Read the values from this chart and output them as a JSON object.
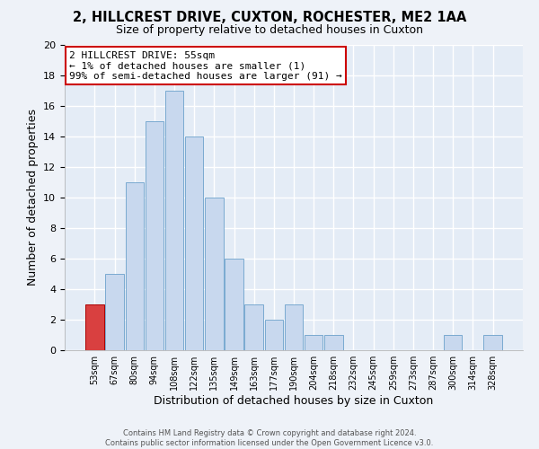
{
  "title": "2, HILLCREST DRIVE, CUXTON, ROCHESTER, ME2 1AA",
  "subtitle": "Size of property relative to detached houses in Cuxton",
  "xlabel": "Distribution of detached houses by size in Cuxton",
  "ylabel": "Number of detached properties",
  "bin_labels": [
    "53sqm",
    "67sqm",
    "80sqm",
    "94sqm",
    "108sqm",
    "122sqm",
    "135sqm",
    "149sqm",
    "163sqm",
    "177sqm",
    "190sqm",
    "204sqm",
    "218sqm",
    "232sqm",
    "245sqm",
    "259sqm",
    "273sqm",
    "287sqm",
    "300sqm",
    "314sqm",
    "328sqm"
  ],
  "heights": [
    3,
    5,
    11,
    15,
    17,
    14,
    10,
    6,
    3,
    2,
    3,
    1,
    1,
    0,
    0,
    0,
    0,
    0,
    1,
    0,
    1
  ],
  "highlight_bar_index": 0,
  "highlight_bar_color": "#d94040",
  "normal_bar_color": "#c8d8ee",
  "normal_bar_edge_color": "#7aaad0",
  "highlight_bar_edge_color": "#aa0000",
  "ylim": [
    0,
    20
  ],
  "yticks": [
    0,
    2,
    4,
    6,
    8,
    10,
    12,
    14,
    16,
    18,
    20
  ],
  "annotation_text_line1": "2 HILLCREST DRIVE: 55sqm",
  "annotation_text_line2": "← 1% of detached houses are smaller (1)",
  "annotation_text_line3": "99% of semi-detached houses are larger (91) →",
  "annotation_box_edge_color": "#cc0000",
  "footer_line1": "Contains HM Land Registry data © Crown copyright and database right 2024.",
  "footer_line2": "Contains public sector information licensed under the Open Government Licence v3.0.",
  "bg_color": "#eef2f8",
  "plot_bg_color": "#e4ecf6"
}
